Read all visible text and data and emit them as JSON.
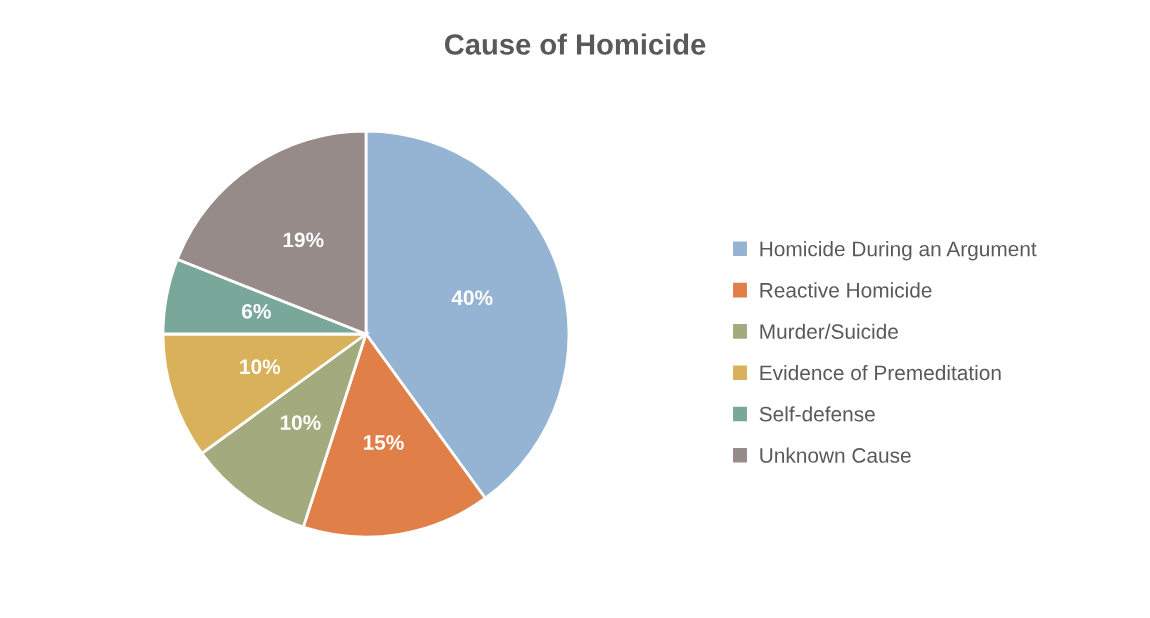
{
  "chart_data": {
    "type": "pie",
    "title": "Cause of Homicide",
    "categories": [
      "Homicide During an Argument",
      "Reactive Homicide",
      "Murder/Suicide",
      "Evidence of Premeditation",
      "Self-defense",
      "Unknown Cause"
    ],
    "values": [
      40,
      15,
      10,
      10,
      6,
      19
    ],
    "colors": [
      "#95b3d3",
      "#e07f47",
      "#a3ab7e",
      "#d9b15b",
      "#79a89a",
      "#968b89"
    ],
    "value_labels": [
      "40%",
      "15%",
      "10%",
      "10%",
      "6%",
      "19%"
    ],
    "legend": "right"
  }
}
